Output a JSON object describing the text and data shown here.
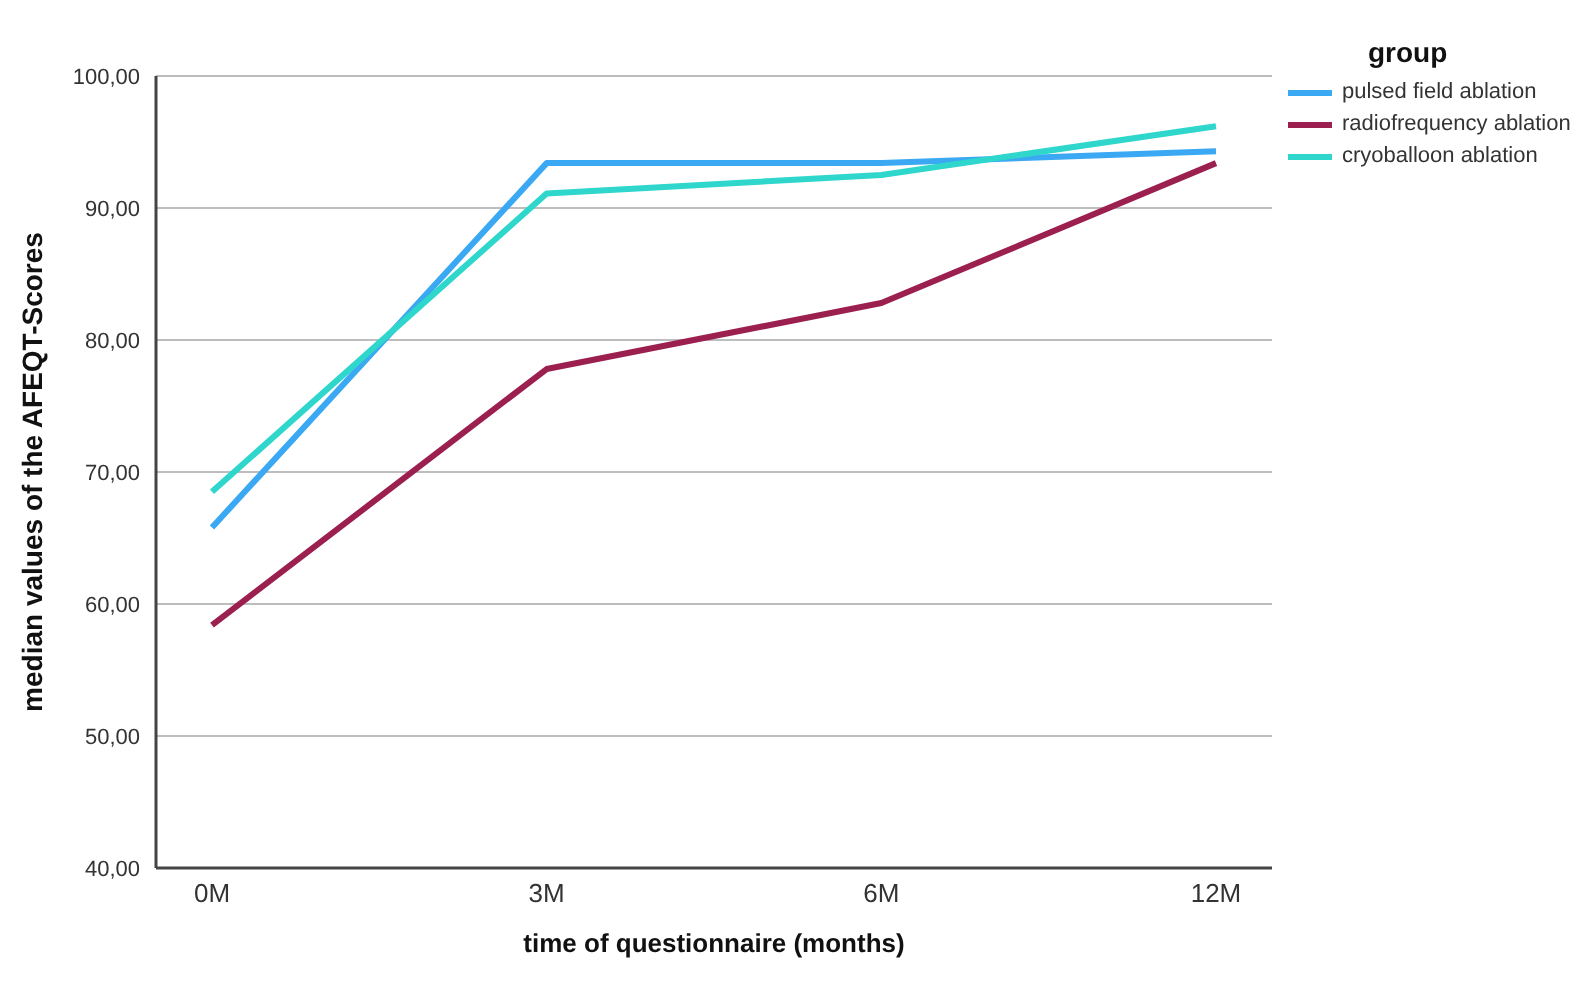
{
  "chart_data": {
    "type": "line",
    "xlabel": "time of questionnaire (months)",
    "ylabel": "median values of  the AFEQT-Scores",
    "legend_title": "group",
    "categories": [
      "0M",
      "3M",
      "6M",
      "12M"
    ],
    "series": [
      {
        "name": "pulsed field ablation",
        "color": "#3aa8f2",
        "values": [
          65.8,
          93.4,
          93.4,
          94.3
        ]
      },
      {
        "name": "radiofrequency ablation",
        "color": "#9b1f4f",
        "values": [
          58.4,
          77.8,
          82.8,
          93.4
        ]
      },
      {
        "name": "cryoballoon ablation",
        "color": "#2ed6cc",
        "values": [
          68.5,
          91.1,
          92.5,
          96.2
        ]
      }
    ],
    "ylim": [
      40,
      100
    ],
    "yticks": [
      {
        "value": 40,
        "label": "40,00"
      },
      {
        "value": 50,
        "label": "50,00"
      },
      {
        "value": 60,
        "label": "60,00"
      },
      {
        "value": 70,
        "label": "70,00"
      },
      {
        "value": 80,
        "label": "80,00"
      },
      {
        "value": 90,
        "label": "90,00"
      },
      {
        "value": 100,
        "label": "100,00"
      }
    ],
    "grid": "y",
    "legend": "top right",
    "marker": "none",
    "line_style": "solid"
  }
}
